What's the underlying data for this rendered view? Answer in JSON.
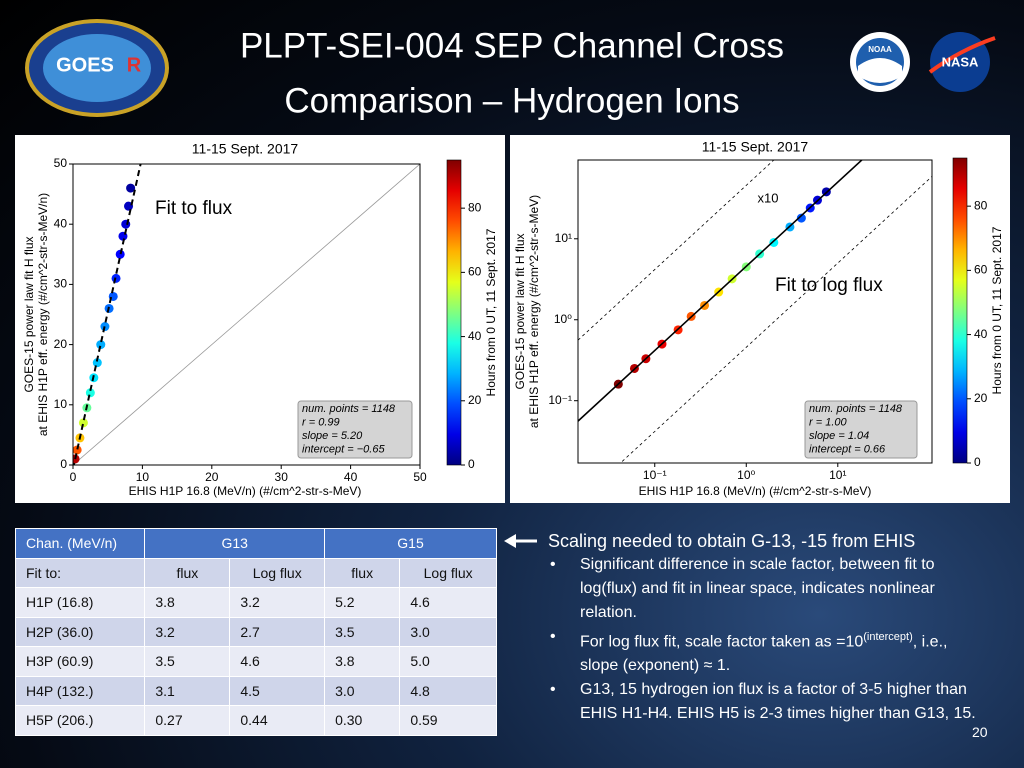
{
  "header": {
    "title_lines": [
      "PLPT-SEI-004 SEP Channel Cross",
      "Comparison – Hydrogen Ions"
    ]
  },
  "logos": {
    "goes": "GOES",
    "goes_mark": "R",
    "noaa": "NOAA",
    "nasa": "NASA"
  },
  "chart_data": [
    {
      "type": "scatter",
      "title": "11-15 Sept. 2017",
      "x_label": "EHIS H1P 16.8 (MeV/n) (#/cm^2-str-s-MeV)",
      "y_label": [
        "GOES-15 power law fit H flux",
        "at EHIS H1P eff. energy (#/cm^2-str-s-MeV/n)"
      ],
      "xlim": [
        0,
        50
      ],
      "ylim": [
        0,
        50
      ],
      "xticks": [
        0,
        10,
        20,
        30,
        40,
        50
      ],
      "yticks": [
        0,
        10,
        20,
        30,
        40,
        50
      ],
      "x": [
        0.3,
        0.6,
        1,
        1.5,
        2,
        2.5,
        3,
        3.5,
        4,
        4.6,
        5.2,
        5.8,
        6.2,
        6.8,
        7.2,
        7.6,
        8,
        8.3
      ],
      "values": [
        1,
        2.5,
        4.5,
        7,
        9.5,
        12,
        14.5,
        17,
        20,
        23,
        26,
        28,
        31,
        35,
        38,
        40,
        43,
        46
      ],
      "color_values": [
        90,
        75,
        65,
        55,
        45,
        38,
        33,
        30,
        28,
        25,
        22,
        20,
        15,
        12,
        10,
        8,
        6,
        3
      ],
      "reference_line": true,
      "fit": {
        "slope": 5.2,
        "intercept": -0.65,
        "style": "dashed"
      },
      "annotations": [
        "Fit to flux"
      ],
      "stats": [
        "num. points = 1148",
        "r = 0.99",
        "slope = 5.20",
        "intercept = −0.65"
      ],
      "colorbar": {
        "label": "Hours from 0 UT, 11 Sept. 2017",
        "lim": [
          0,
          95
        ],
        "ticks": [
          0,
          20,
          40,
          60,
          80
        ],
        "colormap": "jet"
      }
    },
    {
      "type": "scatter",
      "title": "11-15 Sept. 2017",
      "x_label": "EHIS H1P 16.8 (MeV/n) (#/cm^2-str-s-MeV)",
      "y_label": [
        "GOES-15 power law fit H flux",
        "at EHIS H1P eff. energy (#/cm^2-str-s-MeV)"
      ],
      "xscale": "log",
      "yscale": "log",
      "xlim": [
        0.0145,
        107
      ],
      "ylim": [
        0.017,
        94
      ],
      "xticks": [
        {
          "value": 0.1,
          "label": "10⁻¹"
        },
        {
          "value": 1,
          "label": "10⁰"
        },
        {
          "value": 10,
          "label": "10¹"
        }
      ],
      "yticks": [
        {
          "value": 0.1,
          "label": "10⁻¹"
        },
        {
          "value": 1,
          "label": "10⁰"
        },
        {
          "value": 10,
          "label": "10¹"
        }
      ],
      "x": [
        0.04,
        0.06,
        0.08,
        0.12,
        0.18,
        0.25,
        0.35,
        0.5,
        0.7,
        1,
        1.4,
        2,
        3,
        4,
        5,
        6,
        7.5
      ],
      "values": [
        0.16,
        0.25,
        0.33,
        0.5,
        0.75,
        1.1,
        1.5,
        2.2,
        3.2,
        4.5,
        6.5,
        9,
        14,
        18,
        24,
        30,
        38
      ],
      "color_values": [
        95,
        90,
        88,
        85,
        80,
        75,
        70,
        62,
        55,
        48,
        40,
        35,
        28,
        20,
        14,
        8,
        4
      ],
      "fit": {
        "slope": 1.04,
        "intercept": 0.66,
        "space": "log",
        "style": "solid"
      },
      "band": 10,
      "annotations": [
        "x10",
        "Fit to log flux"
      ],
      "stats": [
        "num. points = 1148",
        "r = 1.00",
        "slope = 1.04",
        "intercept = 0.66"
      ],
      "colorbar": {
        "label": "Hours from 0 UT, 11 Sept. 2017",
        "lim": [
          0,
          95
        ],
        "ticks": [
          0,
          20,
          40,
          60,
          80
        ],
        "colormap": "jet"
      }
    }
  ],
  "table": {
    "header": [
      "Chan. (MeV/n)",
      "G13",
      "G15"
    ],
    "subheader": [
      "Fit to:",
      "flux",
      "Log flux",
      "flux",
      "Log flux"
    ],
    "rows": [
      [
        "H1P (16.8)",
        "3.8",
        "3.2",
        "5.2",
        "4.6"
      ],
      [
        "H2P (36.0)",
        "3.2",
        "2.7",
        "3.5",
        "3.0"
      ],
      [
        "H3P (60.9)",
        "3.5",
        "4.6",
        "3.8",
        "5.0"
      ],
      [
        "H4P (132.)",
        "3.1",
        "4.5",
        "3.0",
        "4.8"
      ],
      [
        "H5P (206.)",
        "0.27",
        "0.44",
        "0.30",
        "0.59"
      ]
    ]
  },
  "notes": {
    "heading": "Scaling needed to obtain G-13, -15 from EHIS",
    "bullets": [
      {
        "text": "Significant difference in scale factor, between fit to log(flux) and fit in linear space, indicates nonlinear relation."
      },
      {
        "text": "For log flux fit, scale factor taken as =10",
        "sup": "(intercept)",
        "tail": ", i.e., slope (exponent) ≈ 1."
      },
      {
        "text": "G13, 15 hydrogen ion flux is a factor of 3-5 higher than EHIS H1-H4. EHIS H5 is 2-3 times higher than G13, 15."
      }
    ]
  },
  "page_number": "20"
}
